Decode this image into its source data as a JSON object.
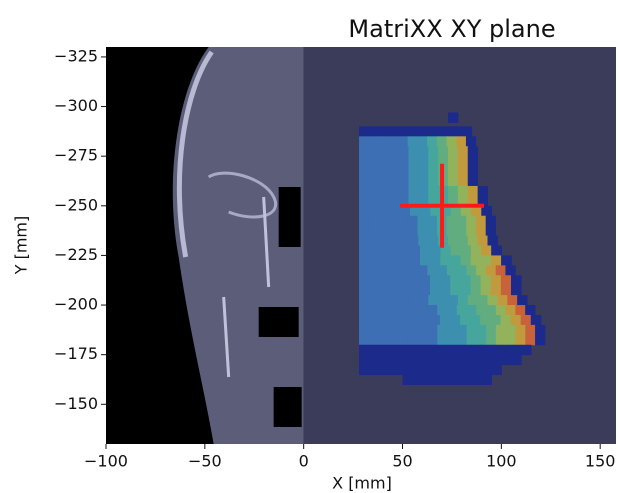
{
  "chart_data": {
    "type": "image",
    "title": "MatriXX XY plane",
    "x_label": "X [mm]",
    "y_label": "Y [mm]",
    "xlim": [
      -100,
      158
    ],
    "ylim": [
      -330,
      -130
    ],
    "xticks": [
      {
        "value": -100,
        "label": "−100"
      },
      {
        "value": -50,
        "label": "−50"
      },
      0,
      50,
      100,
      150
    ],
    "yticks": [
      {
        "value": -325,
        "label": "−325"
      },
      {
        "value": -300,
        "label": "−300"
      },
      {
        "value": -275,
        "label": "−275"
      },
      {
        "value": -250,
        "label": "−250"
      },
      {
        "value": -225,
        "label": "−225"
      },
      {
        "value": -200,
        "label": "−200"
      },
      {
        "value": -175,
        "label": "−175"
      },
      {
        "value": -150,
        "label": "−150"
      }
    ],
    "crosshair": {
      "x": 70,
      "y": -250,
      "color": "#ff1a1a"
    }
  }
}
